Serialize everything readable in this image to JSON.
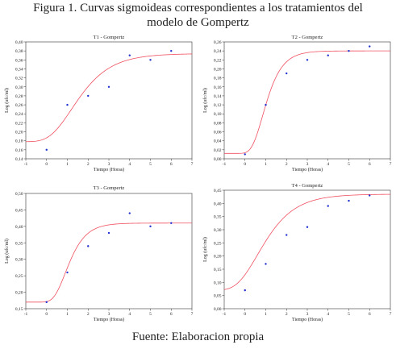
{
  "figure": {
    "title_line1": "Figura 1. Curvas sigmoideas correspondientes a los tratamientos del",
    "title_line2": "modelo de  Gompertz",
    "source": "Fuente: Elaboracion propia"
  },
  "chart_data": [
    {
      "type": "scatter",
      "title": "T1 - Gompertz",
      "xlabel": "Tiempo (Horas)",
      "ylabel": "Log (ufc/ml)",
      "xlim": [
        -1,
        7
      ],
      "ylim": [
        0.14,
        0.4
      ],
      "xticks": [
        "-1",
        "0",
        "1",
        "2",
        "3",
        "4",
        "5",
        "6",
        "7"
      ],
      "yticks": [
        "0,14",
        "0,16",
        "0,18",
        "0,20",
        "0,22",
        "0,24",
        "0,26",
        "0,28",
        "0,30",
        "0,32",
        "0,34",
        "0,36",
        "0,38",
        "0,40"
      ],
      "points": [
        [
          0,
          0.16
        ],
        [
          1,
          0.26
        ],
        [
          2,
          0.28
        ],
        [
          3,
          0.3
        ],
        [
          4,
          0.37
        ],
        [
          5,
          0.36
        ],
        [
          6,
          0.38
        ]
      ],
      "curve": {
        "a": 0.178,
        "b": 0.196,
        "c": 0.95,
        "m": 1.2
      },
      "grid": false,
      "point_color": "#1f2fd0",
      "curve_color": "#f05060"
    },
    {
      "type": "scatter",
      "title": "T2 - Gompertz",
      "xlabel": "Tiempo (Horas)",
      "ylabel": "Log (ufc/ml)",
      "xlim": [
        -1,
        7
      ],
      "ylim": [
        0.0,
        0.26
      ],
      "xticks": [
        "-1",
        "0",
        "1",
        "2",
        "3",
        "4",
        "5",
        "6",
        "7"
      ],
      "yticks": [
        "0,00",
        "0,02",
        "0,04",
        "0,06",
        "0,08",
        "0,10",
        "0,12",
        "0,14",
        "0,16",
        "0,18",
        "0,20",
        "0,22",
        "0,24",
        "0,26"
      ],
      "points": [
        [
          0,
          0.01
        ],
        [
          1,
          0.12
        ],
        [
          2,
          0.19
        ],
        [
          3,
          0.22
        ],
        [
          4,
          0.23
        ],
        [
          5,
          0.24
        ],
        [
          6,
          0.25
        ]
      ],
      "curve": {
        "a": 0.012,
        "b": 0.228,
        "c": 1.9,
        "m": 0.85
      },
      "grid": false,
      "point_color": "#1f2fd0",
      "curve_color": "#f05060"
    },
    {
      "type": "scatter",
      "title": "T3 - Gompertz",
      "xlabel": "Tiempo (Horas)",
      "ylabel": "Log (ufc/ml)",
      "xlim": [
        -1,
        7
      ],
      "ylim": [
        0.15,
        0.5
      ],
      "xticks": [
        "-1",
        "0",
        "1",
        "2",
        "3",
        "4",
        "5",
        "6",
        "7"
      ],
      "yticks": [
        "0,15",
        "0,20",
        "0,25",
        "0,30",
        "0,35",
        "0,40",
        "0,45",
        "0,50"
      ],
      "points": [
        [
          0,
          0.17
        ],
        [
          1,
          0.26
        ],
        [
          2,
          0.34
        ],
        [
          3,
          0.38
        ],
        [
          4,
          0.44
        ],
        [
          5,
          0.4
        ],
        [
          6,
          0.41
        ]
      ],
      "curve": {
        "a": 0.17,
        "b": 0.24,
        "c": 1.8,
        "m": 0.9
      },
      "grid": false,
      "point_color": "#1f2fd0",
      "curve_color": "#f05060"
    },
    {
      "type": "scatter",
      "title": "T4 - Gompertz",
      "xlabel": "Tiempo (Horas)",
      "ylabel": "Log (ufc/ml)",
      "xlim": [
        -1,
        7
      ],
      "ylim": [
        0.0,
        0.45
      ],
      "xticks": [
        "-1",
        "0",
        "1",
        "2",
        "3",
        "4",
        "5",
        "6",
        "7"
      ],
      "yticks": [
        "0,00",
        "0,05",
        "0,10",
        "0,15",
        "0,20",
        "0,25",
        "0,30",
        "0,35",
        "0,40",
        "0,45"
      ],
      "points": [
        [
          0,
          0.07
        ],
        [
          1,
          0.17
        ],
        [
          2,
          0.28
        ],
        [
          3,
          0.31
        ],
        [
          4,
          0.39
        ],
        [
          5,
          0.41
        ],
        [
          6,
          0.43
        ]
      ],
      "curve": {
        "a": 0.07,
        "b": 0.365,
        "c": 1.0,
        "m": 0.6
      },
      "grid": false,
      "point_color": "#1f2fd0",
      "curve_color": "#f05060"
    }
  ]
}
